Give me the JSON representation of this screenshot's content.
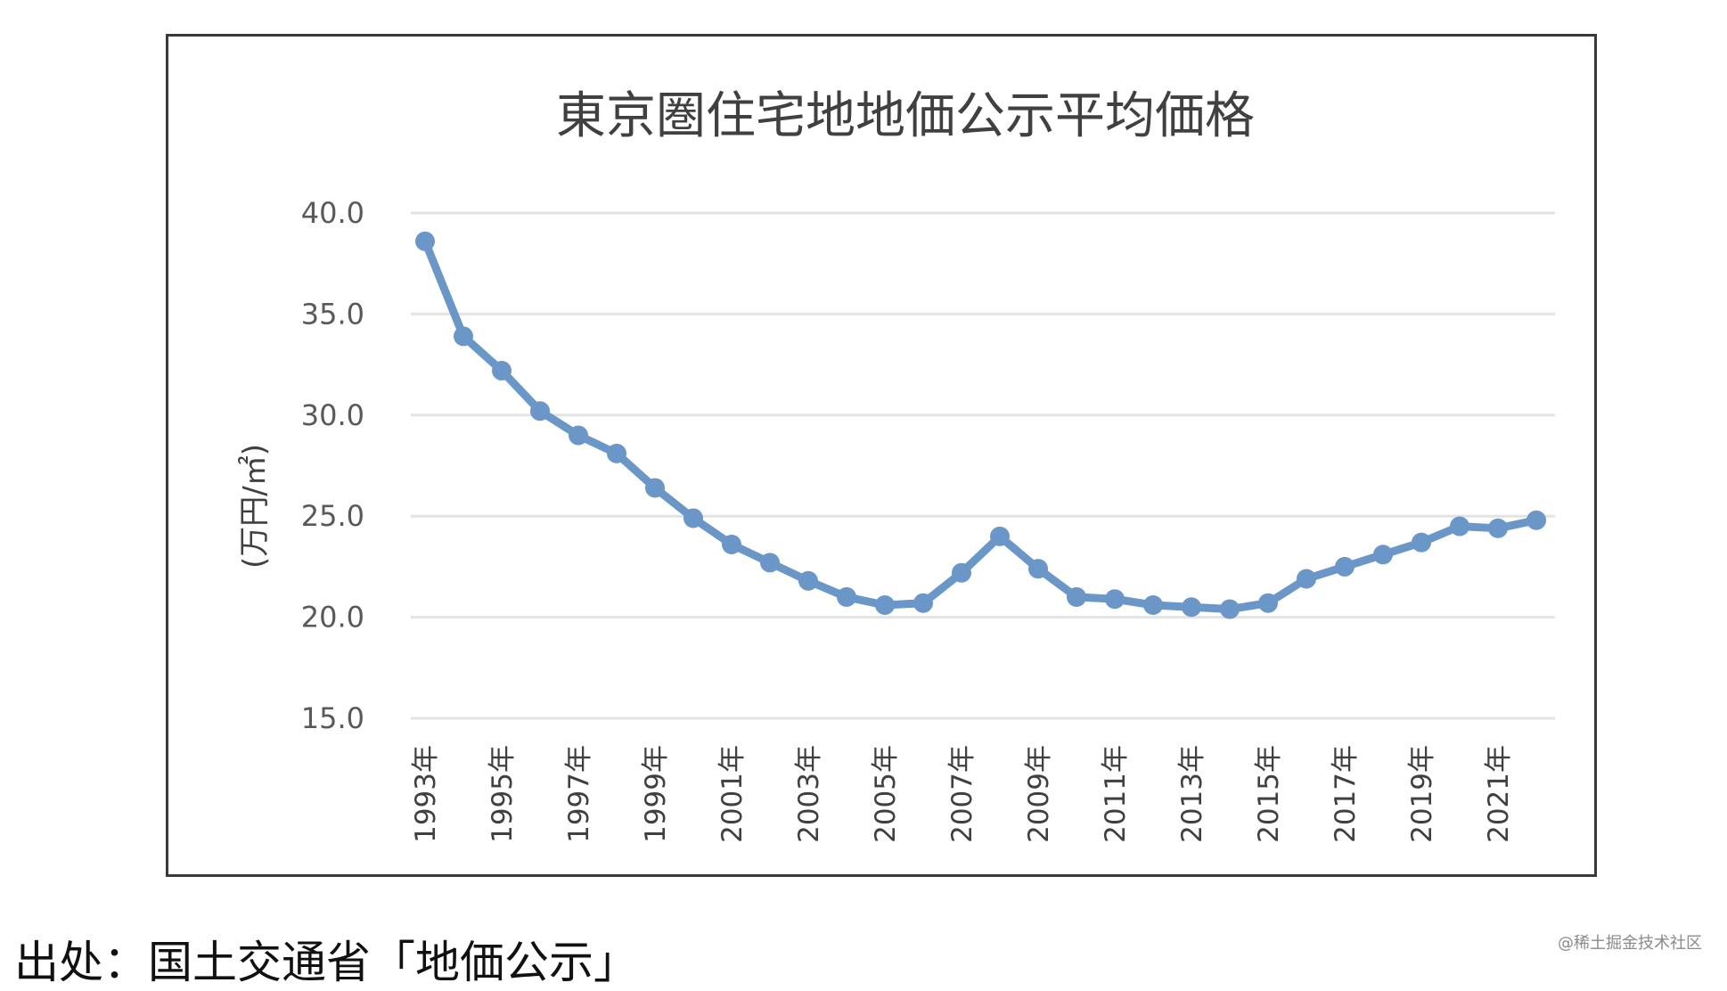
{
  "chart_data": {
    "type": "line",
    "title": "東京圏住宅地地価公示平均価格",
    "ylabel": "(万円/㎡)",
    "xlabel": "",
    "ylim": [
      15.0,
      40.0
    ],
    "yticks": [
      "40.0",
      "35.0",
      "30.0",
      "25.0",
      "20.0",
      "15.0"
    ],
    "x_tick_labels": [
      "1993年",
      "1995年",
      "1997年",
      "1999年",
      "2001年",
      "2003年",
      "2005年",
      "2007年",
      "2009年",
      "2011年",
      "2013年",
      "2015年",
      "2017年",
      "2019年",
      "2021年"
    ],
    "x": [
      1993,
      1994,
      1995,
      1996,
      1997,
      1998,
      1999,
      2000,
      2001,
      2002,
      2003,
      2004,
      2005,
      2006,
      2007,
      2008,
      2009,
      2010,
      2011,
      2012,
      2013,
      2014,
      2015,
      2016,
      2017,
      2018,
      2019,
      2020,
      2021,
      2022
    ],
    "series": [
      {
        "values": [
          38.6,
          33.9,
          32.2,
          30.2,
          29.0,
          28.1,
          26.4,
          24.9,
          23.6,
          22.7,
          21.8,
          21.0,
          20.6,
          20.7,
          22.2,
          24.0,
          22.4,
          21.0,
          20.9,
          20.6,
          20.5,
          20.4,
          20.7,
          21.9,
          22.5,
          23.1,
          23.7,
          24.5,
          24.4,
          24.8
        ],
        "color": "#6b96c8"
      }
    ],
    "grid": true,
    "legend": "none"
  },
  "source_note": "出处：国土交通省「地価公示」",
  "watermark": "@稀土掘金技术社区"
}
